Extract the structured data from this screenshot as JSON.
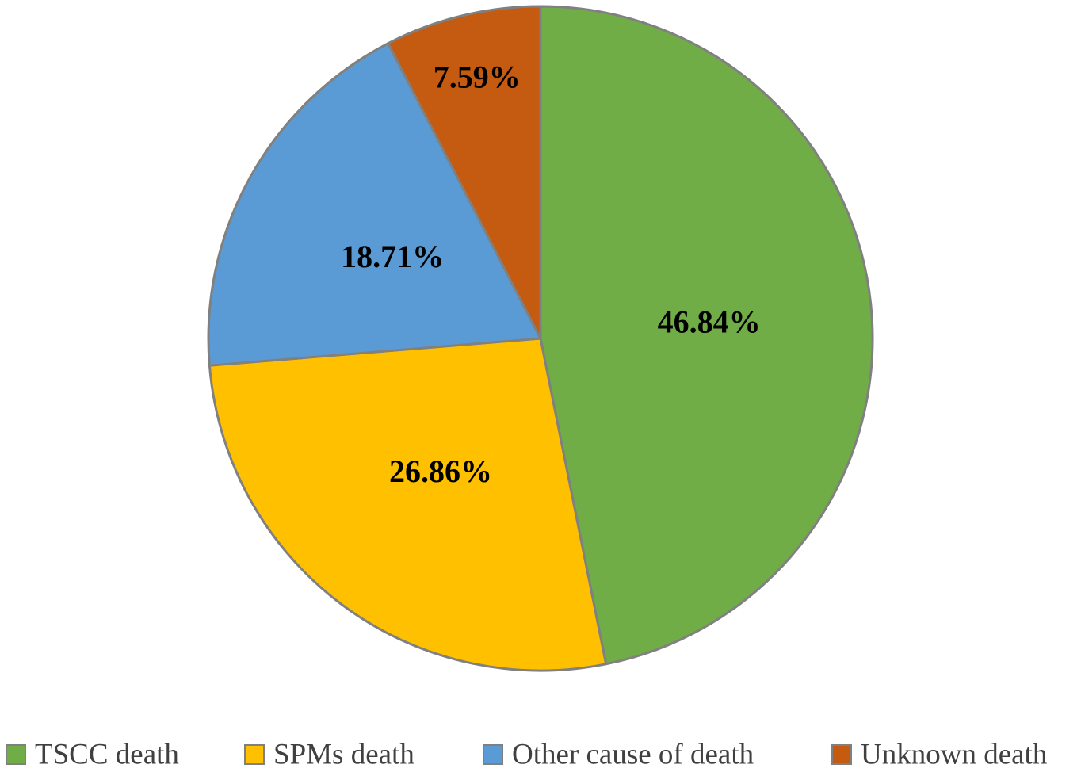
{
  "chart_data": {
    "type": "pie",
    "title": "",
    "labels": [
      "TSCC death",
      "SPMs death",
      "Other cause of death",
      "Unknown death"
    ],
    "values": [
      46.84,
      26.86,
      18.71,
      7.59
    ],
    "value_labels": [
      "46.84%",
      "26.86%",
      "18.71%",
      "7.59%"
    ],
    "colors": [
      "#70ad47",
      "#ffc000",
      "#5b9bd5",
      "#c55a11"
    ],
    "start_angle": "12 o'clock, clockwise",
    "legend_position": "bottom"
  }
}
